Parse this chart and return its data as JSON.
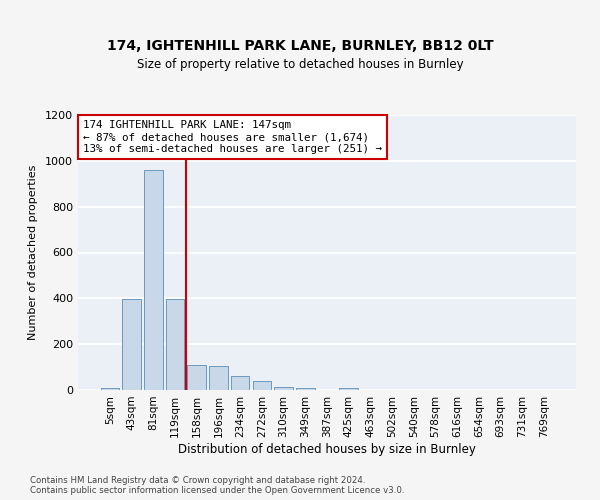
{
  "title_line1": "174, IGHTENHILL PARK LANE, BURNLEY, BB12 0LT",
  "title_line2": "Size of property relative to detached houses in Burnley",
  "xlabel": "Distribution of detached houses by size in Burnley",
  "ylabel": "Number of detached properties",
  "categories": [
    "5sqm",
    "43sqm",
    "81sqm",
    "119sqm",
    "158sqm",
    "196sqm",
    "234sqm",
    "272sqm",
    "310sqm",
    "349sqm",
    "387sqm",
    "425sqm",
    "463sqm",
    "502sqm",
    "540sqm",
    "578sqm",
    "616sqm",
    "654sqm",
    "693sqm",
    "731sqm",
    "769sqm"
  ],
  "values": [
    10,
    395,
    960,
    395,
    110,
    105,
    60,
    40,
    15,
    8,
    0,
    10,
    0,
    0,
    0,
    0,
    0,
    0,
    0,
    0,
    0
  ],
  "bar_color": "#c8d8e8",
  "bar_edge_color": "#5b8db8",
  "vline_x_index": 3.5,
  "vline_color": "#cc0000",
  "annotation_text": "174 IGHTENHILL PARK LANE: 147sqm\n← 87% of detached houses are smaller (1,674)\n13% of semi-detached houses are larger (251) →",
  "annotation_box_color": "#cc0000",
  "ylim": [
    0,
    1200
  ],
  "yticks": [
    0,
    200,
    400,
    600,
    800,
    1000,
    1200
  ],
  "footnote": "Contains HM Land Registry data © Crown copyright and database right 2024.\nContains public sector information licensed under the Open Government Licence v3.0.",
  "fig_bg_color": "#f5f5f5",
  "plot_bg_color": "#eaf0f6",
  "grid_color": "#ffffff"
}
